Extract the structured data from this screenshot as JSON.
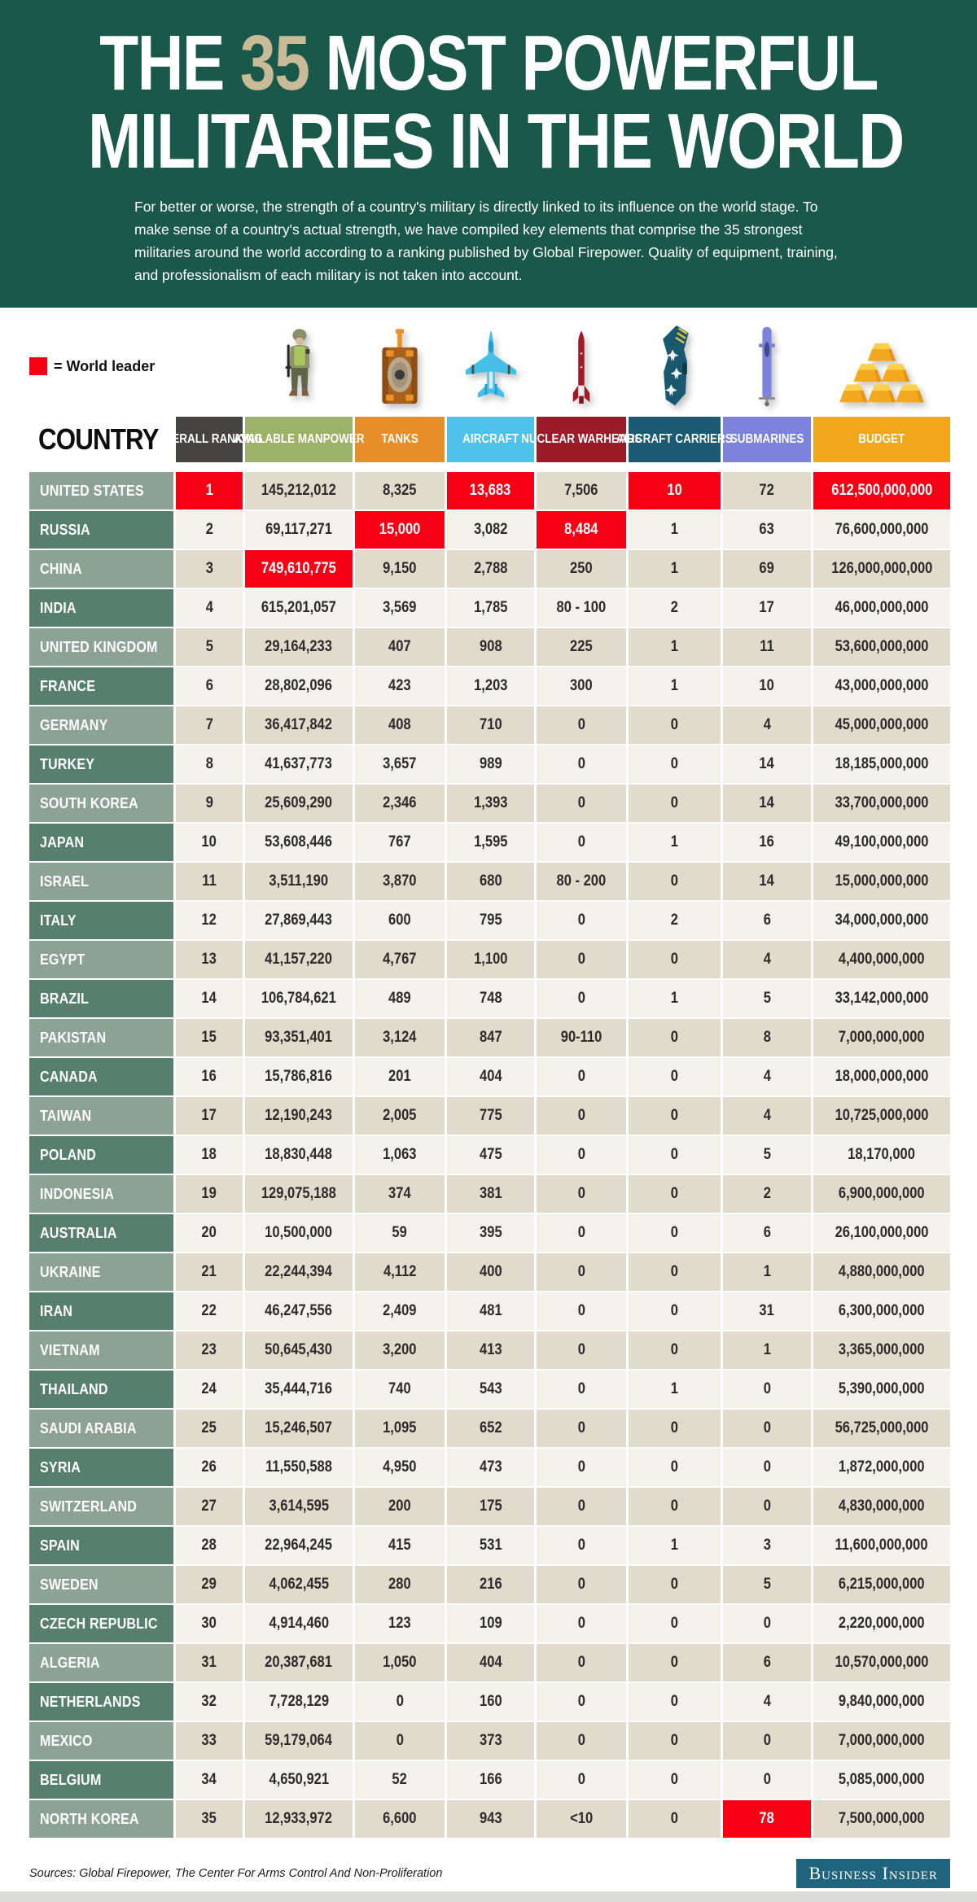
{
  "palette": {
    "header_bg": "#1A594A",
    "title_accent": "#C9BB97",
    "leader": "#F70014",
    "country_light": "#8CA295",
    "country_dark": "#567F70",
    "cell_dark": "#E0DBCD",
    "cell_light": "#F4F1EB",
    "text_dark": "#2E2B28",
    "footer_brand_bg": "#1F637C",
    "bottom_strip": "#DBDBD8"
  },
  "header": {
    "title": {
      "pre": "THE ",
      "number": "35",
      "rest": " MOST POWERFUL",
      "line2": "MILITARIES IN THE WORLD"
    },
    "subtitle": "For better or worse, the strength of a country's military is directly linked to its influence on the world stage. To make sense of a country's actual strength, we have compiled key elements that comprise the 35 strongest militaries around the world according to a ranking published by Global Firepower. Quality of equipment, training, and professionalism of each military is not taken into account."
  },
  "legend": {
    "swatch_color": "#F70014",
    "label": "= World leader"
  },
  "table": {
    "country_header": "COUNTRY",
    "columns": [
      {
        "id": "ranking",
        "label": "OVERALL RANKING",
        "color": "#454443",
        "icon": null
      },
      {
        "id": "manpower",
        "label": "AVAILABLE MANPOWER",
        "color": "#9CB266",
        "icon": "soldier-icon"
      },
      {
        "id": "tanks",
        "label": "TANKS",
        "color": "#E88E28",
        "icon": "tank-icon"
      },
      {
        "id": "aircraft",
        "label": "AIRCRAFT",
        "color": "#4FC2EB",
        "icon": "fighter-jet-icon"
      },
      {
        "id": "nuclear",
        "label": "NUCLEAR WARHEADS",
        "color": "#9C1B29",
        "icon": "missile-icon"
      },
      {
        "id": "carriers",
        "label": "AIRCRAFT CARRIERS",
        "color": "#1A5A73",
        "icon": "aircraft-carrier-icon"
      },
      {
        "id": "submarines",
        "label": "SUBMARINES",
        "color": "#7B83DC",
        "icon": "submarine-icon"
      },
      {
        "id": "budget",
        "label": "BUDGET",
        "color": "#F2A71B",
        "icon": "gold-bars-icon"
      }
    ],
    "rows": [
      {
        "country": "UNITED STATES",
        "values": [
          "1",
          "145,212,012",
          "8,325",
          "13,683",
          "7,506",
          "10",
          "72",
          "612,500,000,000"
        ],
        "leaders": [
          0,
          3,
          5,
          7
        ]
      },
      {
        "country": "RUSSIA",
        "values": [
          "2",
          "69,117,271",
          "15,000",
          "3,082",
          "8,484",
          "1",
          "63",
          "76,600,000,000"
        ],
        "leaders": [
          2,
          4
        ]
      },
      {
        "country": "CHINA",
        "values": [
          "3",
          "749,610,775",
          "9,150",
          "2,788",
          "250",
          "1",
          "69",
          "126,000,000,000"
        ],
        "leaders": [
          1
        ]
      },
      {
        "country": "INDIA",
        "values": [
          "4",
          "615,201,057",
          "3,569",
          "1,785",
          "80 - 100",
          "2",
          "17",
          "46,000,000,000"
        ],
        "leaders": []
      },
      {
        "country": "UNITED KINGDOM",
        "values": [
          "5",
          "29,164,233",
          "407",
          "908",
          "225",
          "1",
          "11",
          "53,600,000,000"
        ],
        "leaders": []
      },
      {
        "country": "FRANCE",
        "values": [
          "6",
          "28,802,096",
          "423",
          "1,203",
          "300",
          "1",
          "10",
          "43,000,000,000"
        ],
        "leaders": []
      },
      {
        "country": "GERMANY",
        "values": [
          "7",
          "36,417,842",
          "408",
          "710",
          "0",
          "0",
          "4",
          "45,000,000,000"
        ],
        "leaders": []
      },
      {
        "country": "TURKEY",
        "values": [
          "8",
          "41,637,773",
          "3,657",
          "989",
          "0",
          "0",
          "14",
          "18,185,000,000"
        ],
        "leaders": []
      },
      {
        "country": "SOUTH KOREA",
        "values": [
          "9",
          "25,609,290",
          "2,346",
          "1,393",
          "0",
          "0",
          "14",
          "33,700,000,000"
        ],
        "leaders": []
      },
      {
        "country": "JAPAN",
        "values": [
          "10",
          "53,608,446",
          "767",
          "1,595",
          "0",
          "1",
          "16",
          "49,100,000,000"
        ],
        "leaders": []
      },
      {
        "country": "ISRAEL",
        "values": [
          "11",
          "3,511,190",
          "3,870",
          "680",
          "80 - 200",
          "0",
          "14",
          "15,000,000,000"
        ],
        "leaders": []
      },
      {
        "country": "ITALY",
        "values": [
          "12",
          "27,869,443",
          "600",
          "795",
          "0",
          "2",
          "6",
          "34,000,000,000"
        ],
        "leaders": []
      },
      {
        "country": "EGYPT",
        "values": [
          "13",
          "41,157,220",
          "4,767",
          "1,100",
          "0",
          "0",
          "4",
          "4,400,000,000"
        ],
        "leaders": []
      },
      {
        "country": "BRAZIL",
        "values": [
          "14",
          "106,784,621",
          "489",
          "748",
          "0",
          "1",
          "5",
          "33,142,000,000"
        ],
        "leaders": []
      },
      {
        "country": "PAKISTAN",
        "values": [
          "15",
          "93,351,401",
          "3,124",
          "847",
          "90-110",
          "0",
          "8",
          "7,000,000,000"
        ],
        "leaders": []
      },
      {
        "country": "CANADA",
        "values": [
          "16",
          "15,786,816",
          "201",
          "404",
          "0",
          "0",
          "4",
          "18,000,000,000"
        ],
        "leaders": []
      },
      {
        "country": "TAIWAN",
        "values": [
          "17",
          "12,190,243",
          "2,005",
          "775",
          "0",
          "0",
          "4",
          "10,725,000,000"
        ],
        "leaders": []
      },
      {
        "country": "POLAND",
        "values": [
          "18",
          "18,830,448",
          "1,063",
          "475",
          "0",
          "0",
          "5",
          "18,170,000"
        ],
        "leaders": []
      },
      {
        "country": "INDONESIA",
        "values": [
          "19",
          "129,075,188",
          "374",
          "381",
          "0",
          "0",
          "2",
          "6,900,000,000"
        ],
        "leaders": []
      },
      {
        "country": "AUSTRALIA",
        "values": [
          "20",
          "10,500,000",
          "59",
          "395",
          "0",
          "0",
          "6",
          "26,100,000,000"
        ],
        "leaders": []
      },
      {
        "country": "UKRAINE",
        "values": [
          "21",
          "22,244,394",
          "4,112",
          "400",
          "0",
          "0",
          "1",
          "4,880,000,000"
        ],
        "leaders": []
      },
      {
        "country": "IRAN",
        "values": [
          "22",
          "46,247,556",
          "2,409",
          "481",
          "0",
          "0",
          "31",
          "6,300,000,000"
        ],
        "leaders": []
      },
      {
        "country": "VIETNAM",
        "values": [
          "23",
          "50,645,430",
          "3,200",
          "413",
          "0",
          "0",
          "1",
          "3,365,000,000"
        ],
        "leaders": []
      },
      {
        "country": "THAILAND",
        "values": [
          "24",
          "35,444,716",
          "740",
          "543",
          "0",
          "1",
          "0",
          "5,390,000,000"
        ],
        "leaders": []
      },
      {
        "country": "SAUDI ARABIA",
        "values": [
          "25",
          "15,246,507",
          "1,095",
          "652",
          "0",
          "0",
          "0",
          "56,725,000,000"
        ],
        "leaders": []
      },
      {
        "country": "SYRIA",
        "values": [
          "26",
          "11,550,588",
          "4,950",
          "473",
          "0",
          "0",
          "0",
          "1,872,000,000"
        ],
        "leaders": []
      },
      {
        "country": "SWITZERLAND",
        "values": [
          "27",
          "3,614,595",
          "200",
          "175",
          "0",
          "0",
          "0",
          "4,830,000,000"
        ],
        "leaders": []
      },
      {
        "country": "SPAIN",
        "values": [
          "28",
          "22,964,245",
          "415",
          "531",
          "0",
          "1",
          "3",
          "11,600,000,000"
        ],
        "leaders": []
      },
      {
        "country": "SWEDEN",
        "values": [
          "29",
          "4,062,455",
          "280",
          "216",
          "0",
          "0",
          "5",
          "6,215,000,000"
        ],
        "leaders": []
      },
      {
        "country": "CZECH REPUBLIC",
        "values": [
          "30",
          "4,914,460",
          "123",
          "109",
          "0",
          "0",
          "0",
          "2,220,000,000"
        ],
        "leaders": []
      },
      {
        "country": "ALGERIA",
        "values": [
          "31",
          "20,387,681",
          "1,050",
          "404",
          "0",
          "0",
          "6",
          "10,570,000,000"
        ],
        "leaders": []
      },
      {
        "country": "NETHERLANDS",
        "values": [
          "32",
          "7,728,129",
          "0",
          "160",
          "0",
          "0",
          "4",
          "9,840,000,000"
        ],
        "leaders": []
      },
      {
        "country": "MEXICO",
        "values": [
          "33",
          "59,179,064",
          "0",
          "373",
          "0",
          "0",
          "0",
          "7,000,000,000"
        ],
        "leaders": []
      },
      {
        "country": "BELGIUM",
        "values": [
          "34",
          "4,650,921",
          "52",
          "166",
          "0",
          "0",
          "0",
          "5,085,000,000"
        ],
        "leaders": []
      },
      {
        "country": "NORTH KOREA",
        "values": [
          "35",
          "12,933,972",
          "6,600",
          "943",
          "<10",
          "0",
          "78",
          "7,500,000,000"
        ],
        "leaders": [
          6
        ]
      }
    ]
  },
  "footer": {
    "sources": "Sources: Global Firepower, The Center For Arms Control And Non-Proliferation",
    "brand": "Business Insider"
  }
}
